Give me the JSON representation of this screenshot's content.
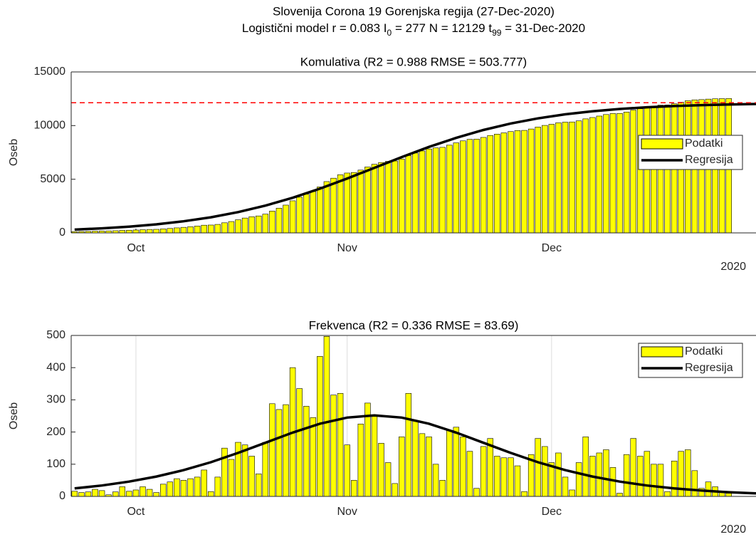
{
  "title": "Slovenija Corona 19 Gorenjska regija (27-Dec-2020)",
  "subtitle_parts": [
    "Logistični model r = 0.083  I",
    "0",
    " = 277  N = 12129  t",
    "99",
    " = 31-Dec-2020"
  ],
  "chart_data": [
    {
      "type": "bar",
      "title": "Komulativa (R2 = 0.988  RMSE = 503.777)",
      "ylabel": "Oseb",
      "year_label": "2020",
      "xlim": [
        265.5,
        366
      ],
      "xticks": [
        {
          "value": 275,
          "label": "Oct"
        },
        {
          "value": 306,
          "label": "Nov"
        },
        {
          "value": 336,
          "label": "Dec"
        }
      ],
      "ylim": [
        0,
        15000
      ],
      "yticks": [
        0,
        5000,
        10000,
        15000
      ],
      "grid": false,
      "legend": "east",
      "reference_line": {
        "value": 12129,
        "color": "#ff0000"
      },
      "x": [
        266,
        267,
        268,
        269,
        270,
        271,
        272,
        273,
        274,
        275,
        276,
        277,
        278,
        279,
        280,
        281,
        282,
        283,
        284,
        285,
        286,
        287,
        288,
        289,
        290,
        291,
        292,
        293,
        294,
        295,
        296,
        297,
        298,
        299,
        300,
        301,
        302,
        303,
        304,
        305,
        306,
        307,
        308,
        309,
        310,
        311,
        312,
        313,
        314,
        315,
        316,
        317,
        318,
        319,
        320,
        321,
        322,
        323,
        324,
        325,
        326,
        327,
        328,
        329,
        330,
        331,
        332,
        333,
        334,
        335,
        336,
        337,
        338,
        339,
        340,
        341,
        342,
        343,
        344,
        345,
        346,
        347,
        348,
        349,
        350,
        351,
        352,
        353,
        354,
        355,
        356,
        357,
        358,
        359,
        360,
        361,
        362
      ],
      "series": [
        {
          "name": "Podatki",
          "color": "#ffff00",
          "values": [
            116,
            128,
            142,
            164,
            182,
            187,
            201,
            231,
            247,
            267,
            297,
            319,
            331,
            369,
            414,
            469,
            519,
            574,
            634,
            716,
            731,
            791,
            941,
            1056,
            1224,
            1384,
            1509,
            1579,
            1747,
            2035,
            2305,
            2590,
            2990,
            3325,
            3605,
            3850,
            4285,
            4782,
            5097,
            5417,
            5577,
            5627,
            5852,
            6142,
            6392,
            6557,
            6662,
            6702,
            6887,
            7207,
            7442,
            7637,
            7822,
            7922,
            7972,
            8177,
            8392,
            8577,
            8717,
            8742,
            8897,
            9077,
            9202,
            9322,
            9442,
            9537,
            9552,
            9682,
            9862,
            10017,
            10122,
            10257,
            10317,
            10337,
            10442,
            10627,
            10752,
            10887,
            11032,
            11122,
            11132,
            11262,
            11442,
            11567,
            11707,
            11807,
            11907,
            11922,
            12032,
            12172,
            12317,
            12397,
            12422,
            12467,
            12497,
            12512,
            12522
          ]
        },
        {
          "name": "Regresija",
          "color": "#000000",
          "type": "line",
          "x": [
            266,
            270,
            274,
            278,
            282,
            286,
            290,
            294,
            298,
            302,
            306,
            310,
            314,
            318,
            322,
            326,
            330,
            334,
            338,
            342,
            346,
            350,
            354,
            358,
            362,
            366
          ],
          "values": [
            307,
            423,
            582,
            796,
            1081,
            1456,
            1937,
            2541,
            3272,
            4121,
            5067,
            6065,
            7062,
            8008,
            8857,
            9588,
            10192,
            10673,
            11048,
            11333,
            11547,
            11706,
            11822,
            11907,
            11969,
            12014
          ]
        }
      ]
    },
    {
      "type": "bar",
      "title": "Frekvenca (R2 = 0.336  RMSE = 83.69)",
      "ylabel": "Oseb",
      "year_label": "2020",
      "xlim": [
        265.5,
        366
      ],
      "xticks": [
        {
          "value": 275,
          "label": "Oct"
        },
        {
          "value": 306,
          "label": "Nov"
        },
        {
          "value": 336,
          "label": "Dec"
        }
      ],
      "ylim": [
        0,
        500
      ],
      "yticks": [
        0,
        100,
        200,
        300,
        400,
        500
      ],
      "grid": true,
      "legend": "northeast",
      "x": [
        266,
        267,
        268,
        269,
        270,
        271,
        272,
        273,
        274,
        275,
        276,
        277,
        278,
        279,
        280,
        281,
        282,
        283,
        284,
        285,
        286,
        287,
        288,
        289,
        290,
        291,
        292,
        293,
        294,
        295,
        296,
        297,
        298,
        299,
        300,
        301,
        302,
        303,
        304,
        305,
        306,
        307,
        308,
        309,
        310,
        311,
        312,
        313,
        314,
        315,
        316,
        317,
        318,
        319,
        320,
        321,
        322,
        323,
        324,
        325,
        326,
        327,
        328,
        329,
        330,
        331,
        332,
        333,
        334,
        335,
        336,
        337,
        338,
        339,
        340,
        341,
        342,
        343,
        344,
        345,
        346,
        347,
        348,
        349,
        350,
        351,
        352,
        353,
        354,
        355,
        356,
        357,
        358,
        359,
        360,
        361,
        362
      ],
      "series": [
        {
          "name": "Podatki",
          "color": "#ffff00",
          "values": [
            16,
            12,
            14,
            22,
            18,
            5,
            14,
            30,
            16,
            20,
            30,
            22,
            12,
            38,
            45,
            55,
            50,
            55,
            60,
            82,
            15,
            60,
            150,
            115,
            168,
            160,
            125,
            70,
            168,
            288,
            270,
            285,
            400,
            335,
            280,
            245,
            435,
            497,
            315,
            320,
            160,
            50,
            225,
            290,
            250,
            165,
            105,
            40,
            185,
            320,
            235,
            195,
            185,
            100,
            50,
            205,
            215,
            185,
            140,
            25,
            155,
            180,
            125,
            120,
            120,
            95,
            15,
            130,
            180,
            155,
            105,
            135,
            60,
            20,
            105,
            185,
            125,
            135,
            145,
            90,
            10,
            130,
            180,
            125,
            140,
            100,
            100,
            15,
            110,
            140,
            145,
            80,
            25,
            45,
            30,
            15,
            10
          ]
        },
        {
          "name": "Regresija",
          "color": "#000000",
          "type": "line",
          "x": [
            266,
            270,
            274,
            278,
            282,
            286,
            290,
            294,
            298,
            302,
            306,
            310,
            314,
            318,
            322,
            326,
            330,
            334,
            338,
            342,
            346,
            350,
            354,
            358,
            362,
            366
          ],
          "values": [
            24.8,
            33.9,
            46.0,
            61.7,
            81.7,
            106.3,
            135.1,
            166.7,
            198.3,
            225.8,
            244.9,
            251.7,
            244.9,
            225.8,
            198.3,
            166.7,
            135.1,
            106.3,
            81.7,
            61.7,
            46.0,
            33.9,
            24.8,
            18.1,
            13.1,
            9.5
          ]
        }
      ]
    }
  ]
}
